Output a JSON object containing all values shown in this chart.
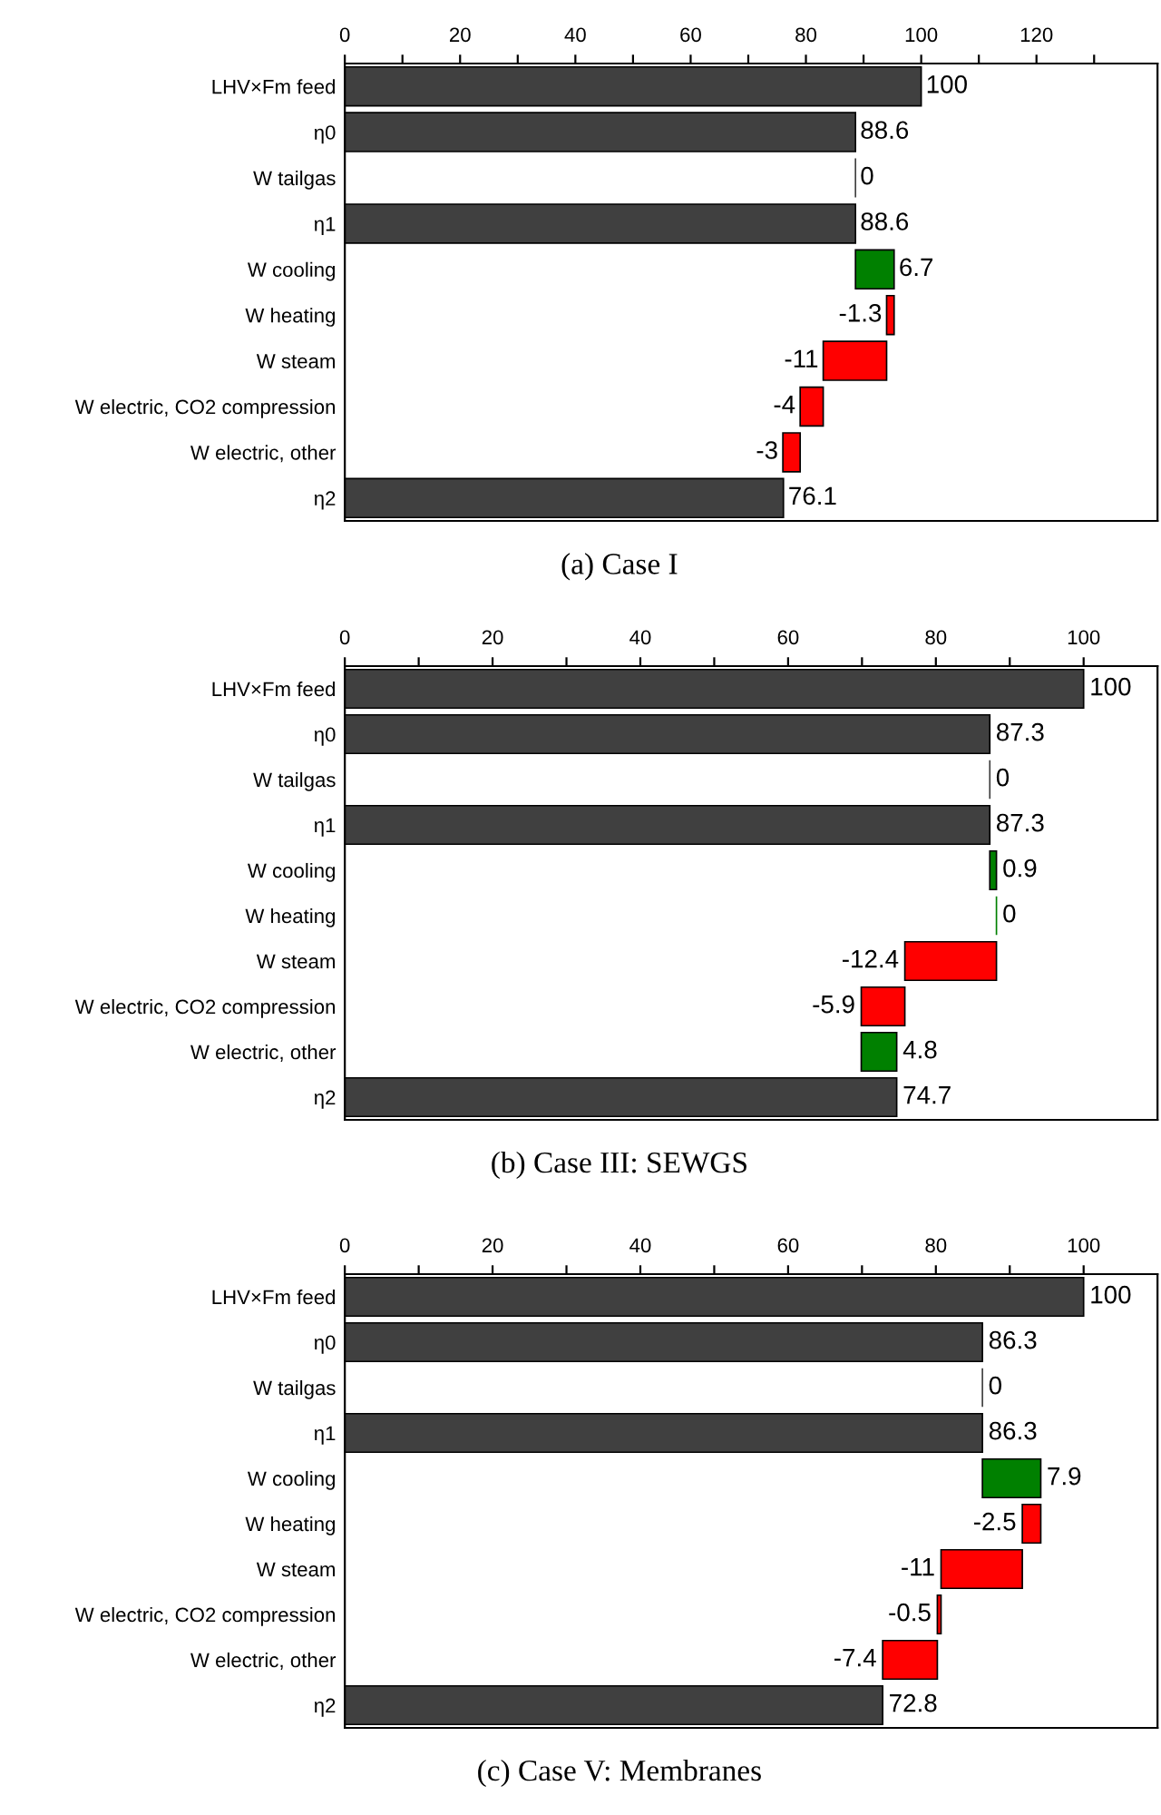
{
  "chart_data": [
    {
      "type": "bar",
      "orientation": "horizontal",
      "categories": [
        "LHV×Fm feed",
        "η0",
        "W tailgas",
        "η1",
        "W cooling",
        "W heating",
        "W steam",
        "W electric, CO2 compression",
        "W electric, other",
        "η2"
      ],
      "values": [
        100,
        88.6,
        0,
        88.6,
        6.7,
        -1.3,
        -11,
        -4,
        -3,
        76.1
      ],
      "base": [
        0,
        0,
        88.6,
        0,
        88.6,
        95.3,
        94,
        83,
        79,
        0
      ],
      "colors": [
        "#404040",
        "#404040",
        "#404040",
        "#404040",
        "#008000",
        "#ff0000",
        "#ff0000",
        "#ff0000",
        "#ff0000",
        "#404040"
      ],
      "xlim": [
        0,
        141
      ],
      "xticks": [
        0,
        {
          "value": 10,
          "label": null
        },
        20,
        {
          "value": 30,
          "label": null
        },
        40,
        {
          "value": 50,
          "label": null
        },
        60,
        {
          "value": 70,
          "label": null
        },
        80,
        {
          "value": 90,
          "label": null
        },
        100,
        {
          "value": 110,
          "label": null
        },
        120,
        {
          "value": 130,
          "label": null
        }
      ],
      "data_labels": true,
      "annotations": [
        "(a) Case I"
      ]
    },
    {
      "type": "bar",
      "orientation": "horizontal",
      "categories": [
        "LHV×Fm feed",
        "η0",
        "W tailgas",
        "η1",
        "W cooling",
        "W heating",
        "W steam",
        "W electric, CO2 compression",
        "W electric, other",
        "η2"
      ],
      "values": [
        100,
        87.3,
        0,
        87.3,
        0.9,
        0,
        -12.4,
        -5.9,
        4.8,
        74.7
      ],
      "base": [
        0,
        0,
        87.3,
        0,
        87.3,
        88.2,
        88.2,
        75.8,
        69.9,
        0
      ],
      "colors": [
        "#404040",
        "#404040",
        "#404040",
        "#404040",
        "#008000",
        "#008000",
        "#ff0000",
        "#ff0000",
        "#008000",
        "#404040"
      ],
      "xlim": [
        0,
        110
      ],
      "xticks": [
        0,
        {
          "value": 10,
          "label": null
        },
        20,
        {
          "value": 30,
          "label": null
        },
        40,
        {
          "value": 50,
          "label": null
        },
        60,
        {
          "value": 70,
          "label": null
        },
        80,
        {
          "value": 90,
          "label": null
        },
        100
      ],
      "data_labels": true,
      "annotations": [
        "(b) Case III: SEWGS"
      ]
    },
    {
      "type": "bar",
      "orientation": "horizontal",
      "categories": [
        "LHV×Fm feed",
        "η0",
        "W tailgas",
        "η1",
        "W cooling",
        "W heating",
        "W steam",
        "W electric, CO2 compression",
        "W electric, other",
        "η2"
      ],
      "values": [
        100,
        86.3,
        0,
        86.3,
        7.9,
        -2.5,
        -11,
        -0.5,
        -7.4,
        72.8
      ],
      "base": [
        0,
        0,
        86.3,
        0,
        86.3,
        94.2,
        91.7,
        80.7,
        80.2,
        0
      ],
      "colors": [
        "#404040",
        "#404040",
        "#404040",
        "#404040",
        "#008000",
        "#ff0000",
        "#ff0000",
        "#ff0000",
        "#ff0000",
        "#404040"
      ],
      "xlim": [
        0,
        110
      ],
      "xticks": [
        0,
        {
          "value": 10,
          "label": null
        },
        20,
        {
          "value": 30,
          "label": null
        },
        40,
        {
          "value": 50,
          "label": null
        },
        60,
        {
          "value": 70,
          "label": null
        },
        80,
        {
          "value": 90,
          "label": null
        },
        100
      ],
      "data_labels": true,
      "annotations": [
        "(c) Case V: Membranes"
      ]
    }
  ]
}
